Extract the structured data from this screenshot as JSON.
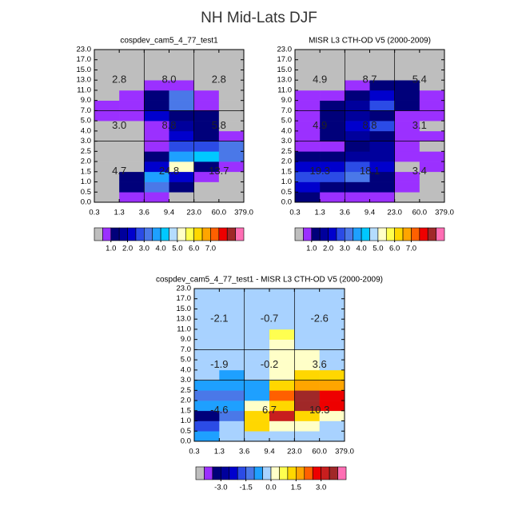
{
  "title": "NH Mid-Lats DJF",
  "chart_data": [
    {
      "type": "heatmap",
      "title": "cospdev_cam5_4_77_test1",
      "x_edges": [
        "0.3",
        "1.3",
        "3.6",
        "9.4",
        "23.0",
        "60.0",
        "379.0"
      ],
      "y_edges": [
        "0.0",
        "0.5",
        "1.0",
        "1.5",
        "2.0",
        "2.5",
        "3.0",
        "4.0",
        "5.0",
        "7.0",
        "9.0",
        "11.0",
        "13.0",
        "15.0",
        "17.0",
        "23.0"
      ],
      "values": [
        [
          0,
          0.75,
          0.75,
          0,
          0,
          0
        ],
        [
          0,
          1.25,
          3.25,
          1.25,
          0,
          0
        ],
        [
          0,
          1.25,
          3.75,
          2.25,
          0.75,
          0
        ],
        [
          0,
          0,
          2.25,
          5.25,
          1.25,
          0.75
        ],
        [
          0,
          0,
          1.25,
          3.75,
          4.25,
          3.25
        ],
        [
          0,
          0,
          0.75,
          2.75,
          2.75,
          3.25
        ],
        [
          0,
          0,
          0.75,
          2.25,
          1.25,
          0.75
        ],
        [
          0,
          0,
          0.75,
          1.75,
          1.25,
          0
        ],
        [
          0.75,
          0.75,
          2.25,
          1.25,
          1.25,
          0
        ],
        [
          0.75,
          0.75,
          1.25,
          3.25,
          0.75,
          0
        ],
        [
          0,
          0.75,
          1.25,
          3.25,
          0.75,
          0
        ],
        [
          0,
          0,
          0.75,
          0.75,
          0,
          0
        ],
        [
          0,
          0,
          0,
          0,
          0,
          0
        ],
        [
          0,
          0,
          0,
          0,
          0,
          0
        ],
        [
          0,
          0,
          0,
          0,
          0,
          0
        ]
      ],
      "region_values": [
        2.8,
        8.0,
        2.8,
        3.0,
        8.8,
        5.8,
        4.7,
        24.8,
        13.7
      ],
      "region_labels": [
        "2.8",
        "8.0",
        "2.8",
        "3.0",
        "8.8",
        "5.8",
        "4.7",
        "24.8",
        "13.7"
      ],
      "colorbar": {
        "levels": [
          0.5,
          1,
          1.5,
          2,
          2.5,
          3,
          3.5,
          4,
          4.5,
          5,
          5.5,
          6,
          6.5,
          7,
          7.5,
          8,
          8.5
        ],
        "colors": [
          "#bebebe",
          "#9b30ff",
          "#00007a",
          "#00009c",
          "#0000cd",
          "#2b4be6",
          "#4a78e8",
          "#1ea0ff",
          "#00c8ff",
          "#b4dcff",
          "#ffffc8",
          "#ffff50",
          "#ffd700",
          "#ffa500",
          "#ff6000",
          "#ee0000",
          "#a02828",
          "#ff6eb4"
        ],
        "ticks": [
          {
            "value": 1,
            "label": "1.0"
          },
          {
            "value": 2,
            "label": "2.0"
          },
          {
            "value": 3,
            "label": "3.0"
          },
          {
            "value": 4,
            "label": "4.0"
          },
          {
            "value": 5,
            "label": "5.0"
          },
          {
            "value": 6,
            "label": "6.0"
          },
          {
            "value": 7,
            "label": "7.0"
          }
        ]
      }
    },
    {
      "type": "heatmap",
      "title": "MISR L3 CTH-OD V5 (2000-2009)",
      "x_edges": [
        "0.3",
        "1.3",
        "3.6",
        "9.4",
        "23.0",
        "60.0",
        "379.0"
      ],
      "y_edges": [
        "0.0",
        "0.5",
        "1.0",
        "1.5",
        "2.0",
        "2.5",
        "3.0",
        "4.0",
        "5.0",
        "7.0",
        "9.0",
        "11.0",
        "13.0",
        "15.0",
        "17.0",
        "23.0"
      ],
      "values": [
        [
          1.25,
          0.75,
          0.75,
          0.75,
          0,
          0
        ],
        [
          2.25,
          1.25,
          1.25,
          1.25,
          0.75,
          0
        ],
        [
          2.75,
          2.75,
          3.25,
          1.25,
          0.75,
          0
        ],
        [
          2.25,
          2.25,
          2.75,
          2.25,
          0,
          0.75
        ],
        [
          1.25,
          1.25,
          1.75,
          1.75,
          0.75,
          0.75
        ],
        [
          0.75,
          0.75,
          1.25,
          1.75,
          0.75,
          0
        ],
        [
          0.75,
          1.25,
          1.75,
          1.25,
          0.75,
          0.75
        ],
        [
          0.75,
          1.25,
          2.25,
          2.75,
          0.75,
          0
        ],
        [
          0.75,
          1.25,
          1.75,
          1.25,
          0.75,
          0.75
        ],
        [
          0.75,
          1.25,
          1.75,
          2.75,
          1.25,
          0.75
        ],
        [
          0.75,
          0.75,
          1.25,
          2.25,
          1.25,
          0.75
        ],
        [
          0,
          0,
          0.75,
          1.25,
          1.25,
          0
        ],
        [
          0,
          0,
          0,
          0,
          0,
          0
        ],
        [
          0,
          0,
          0,
          0,
          0,
          0
        ],
        [
          0,
          0,
          0,
          0,
          0,
          0
        ]
      ],
      "region_values": [
        4.9,
        8.7,
        5.4,
        4.9,
        8.8,
        3.1,
        19.3,
        18.1,
        3.4
      ],
      "region_labels": [
        "4.9",
        "8.7",
        "5.4",
        "4.9",
        "8.8",
        "3.1",
        "19.3",
        "18.1",
        "3.4"
      ],
      "colorbar": {
        "levels": [
          0.5,
          1,
          1.5,
          2,
          2.5,
          3,
          3.5,
          4,
          4.5,
          5,
          5.5,
          6,
          6.5,
          7,
          7.5,
          8,
          8.5
        ],
        "colors": [
          "#bebebe",
          "#9b30ff",
          "#00007a",
          "#00009c",
          "#0000cd",
          "#2b4be6",
          "#4a78e8",
          "#1ea0ff",
          "#00c8ff",
          "#b4dcff",
          "#ffffc8",
          "#ffff50",
          "#ffd700",
          "#ffa500",
          "#ff6000",
          "#ee0000",
          "#a02828",
          "#ff6eb4"
        ],
        "ticks": [
          {
            "value": 1,
            "label": "1.0"
          },
          {
            "value": 2,
            "label": "2.0"
          },
          {
            "value": 3,
            "label": "3.0"
          },
          {
            "value": 4,
            "label": "4.0"
          },
          {
            "value": 5,
            "label": "5.0"
          },
          {
            "value": 6,
            "label": "6.0"
          },
          {
            "value": 7,
            "label": "7.0"
          }
        ]
      }
    },
    {
      "type": "heatmap",
      "title": "cospdev_cam5_4_77_test1 - MISR L3 CTH-OD V5 (2000-2009)",
      "x_edges": [
        "0.3",
        "1.3",
        "3.6",
        "9.4",
        "23.0",
        "60.0",
        "379.0"
      ],
      "y_edges": [
        "0.0",
        "0.5",
        "1.0",
        "1.5",
        "2.0",
        "2.5",
        "3.0",
        "4.0",
        "5.0",
        "7.0",
        "9.0",
        "11.0",
        "13.0",
        "15.0",
        "17.0",
        "23.0"
      ],
      "values": [
        [
          -0.75,
          -0.25,
          -0.25,
          -0.25,
          -0.25,
          -0.25
        ],
        [
          -1.75,
          -0.25,
          1.25,
          0.25,
          0.25,
          -0.25
        ],
        [
          -3.25,
          -1.25,
          1.25,
          3.25,
          1.25,
          0.25
        ],
        [
          -0.75,
          -0.75,
          0.25,
          1.25,
          3.75,
          2.75
        ],
        [
          -1.25,
          -1.25,
          -0.75,
          2.25,
          3.75,
          2.75
        ],
        [
          -0.75,
          -0.75,
          -0.75,
          1.25,
          1.75,
          1.75
        ],
        [
          -0.25,
          -0.75,
          -0.25,
          0.25,
          1.25,
          1.25
        ],
        [
          -0.25,
          -0.25,
          -0.25,
          0.25,
          0.25,
          -0.25
        ],
        [
          -0.25,
          -0.25,
          -0.25,
          0.25,
          0.25,
          -0.25
        ],
        [
          -0.25,
          -0.25,
          -0.25,
          0.25,
          -0.25,
          -0.25
        ],
        [
          -0.25,
          -0.25,
          -0.25,
          0.75,
          -0.25,
          -0.25
        ],
        [
          -0.25,
          -0.25,
          -0.25,
          -0.25,
          -0.25,
          -0.25
        ],
        [
          -0.25,
          -0.25,
          -0.25,
          -0.25,
          -0.25,
          -0.25
        ],
        [
          -0.25,
          -0.25,
          -0.25,
          -0.25,
          -0.25,
          -0.25
        ],
        [
          -0.25,
          -0.25,
          -0.25,
          -0.25,
          -0.25,
          -0.25
        ]
      ],
      "region_values": [
        -2.1,
        -0.7,
        -2.6,
        -1.9,
        -0.2,
        3.6,
        -4.6,
        6.7,
        10.3
      ],
      "region_labels": [
        "-2.1",
        "-0.7",
        "-2.6",
        "-1.9",
        "-0.2",
        "3.6",
        "-4.6",
        "6.7",
        "10.3"
      ],
      "colorbar": {
        "levels": [
          -4,
          -3.5,
          -3,
          -2.5,
          -2,
          -1.5,
          -1,
          -0.5,
          0,
          0.5,
          1,
          1.5,
          2,
          2.5,
          3,
          3.5,
          4
        ],
        "colors": [
          "#bebebe",
          "#9b30ff",
          "#00007a",
          "#00009c",
          "#0000cd",
          "#2b4be6",
          "#4a78e8",
          "#1ea0ff",
          "#a8d2ff",
          "#ffffc8",
          "#ffff50",
          "#ffd700",
          "#ffa500",
          "#ff6000",
          "#ee0000",
          "#c81e1e",
          "#a02828",
          "#ff6eb4"
        ],
        "ticks": [
          {
            "value": -3,
            "label": "-3.0"
          },
          {
            "value": -1.5,
            "label": "-1.5"
          },
          {
            "value": 0,
            "label": "0.0"
          },
          {
            "value": 1.5,
            "label": "1.5"
          },
          {
            "value": 3,
            "label": "3.0"
          }
        ]
      }
    }
  ]
}
